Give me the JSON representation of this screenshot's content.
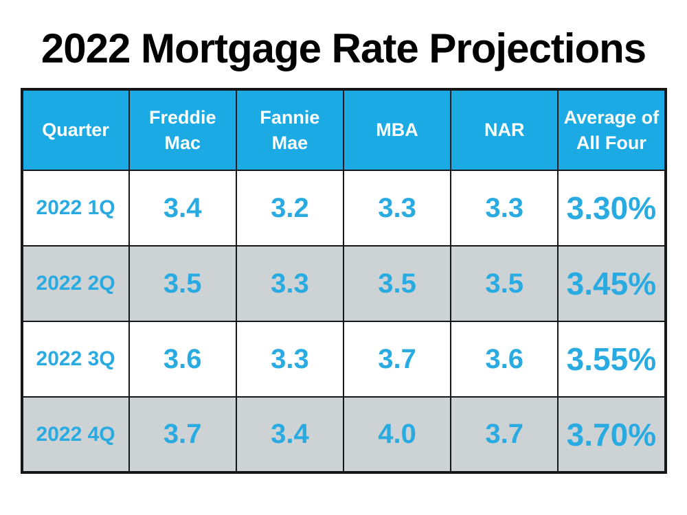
{
  "title": "2022 Mortgage Rate Projections",
  "colors": {
    "header_bg": "#1baae4",
    "accent_text": "#29abe2",
    "row_alt_bg": "#cdd3d5",
    "border": "#161616"
  },
  "chart_data": {
    "type": "table",
    "title": "2022 Mortgage Rate Projections",
    "columns": [
      "Quarter",
      "Freddie Mac",
      "Fannie Mae",
      "MBA",
      "NAR",
      "Average of All Four"
    ],
    "rows": [
      [
        "2022 1Q",
        "3.4",
        "3.2",
        "3.3",
        "3.3",
        "3.30%"
      ],
      [
        "2022 2Q",
        "3.5",
        "3.3",
        "3.5",
        "3.5",
        "3.45%"
      ],
      [
        "2022 3Q",
        "3.6",
        "3.3",
        "3.7",
        "3.6",
        "3.55%"
      ],
      [
        "2022 4Q",
        "3.7",
        "3.4",
        "4.0",
        "3.7",
        "3.70%"
      ]
    ]
  }
}
